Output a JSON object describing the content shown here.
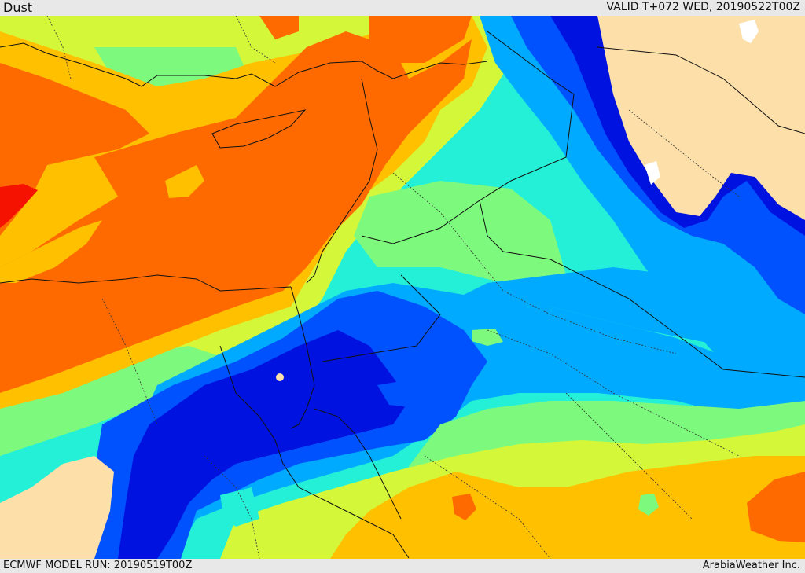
{
  "header": {
    "field_name": "Dust",
    "valid_time": "VALID T+072 WED, 20190522T00Z"
  },
  "footer": {
    "model_run": "ECMWF MODEL RUN: 20190519T00Z",
    "credit": "ArabiaWeather Inc."
  },
  "palette": {
    "land_tan": "#fddfaa",
    "dark_blue": "#0012e0",
    "blue": "#0052ff",
    "light_blue": "#00aaff",
    "cyan": "#24f0d8",
    "green": "#7dfa7d",
    "yellow_green": "#d4f73a",
    "yellow": "#ffc000",
    "orange": "#ff6a00",
    "red": "#f51200",
    "lake": "#ffffff"
  }
}
